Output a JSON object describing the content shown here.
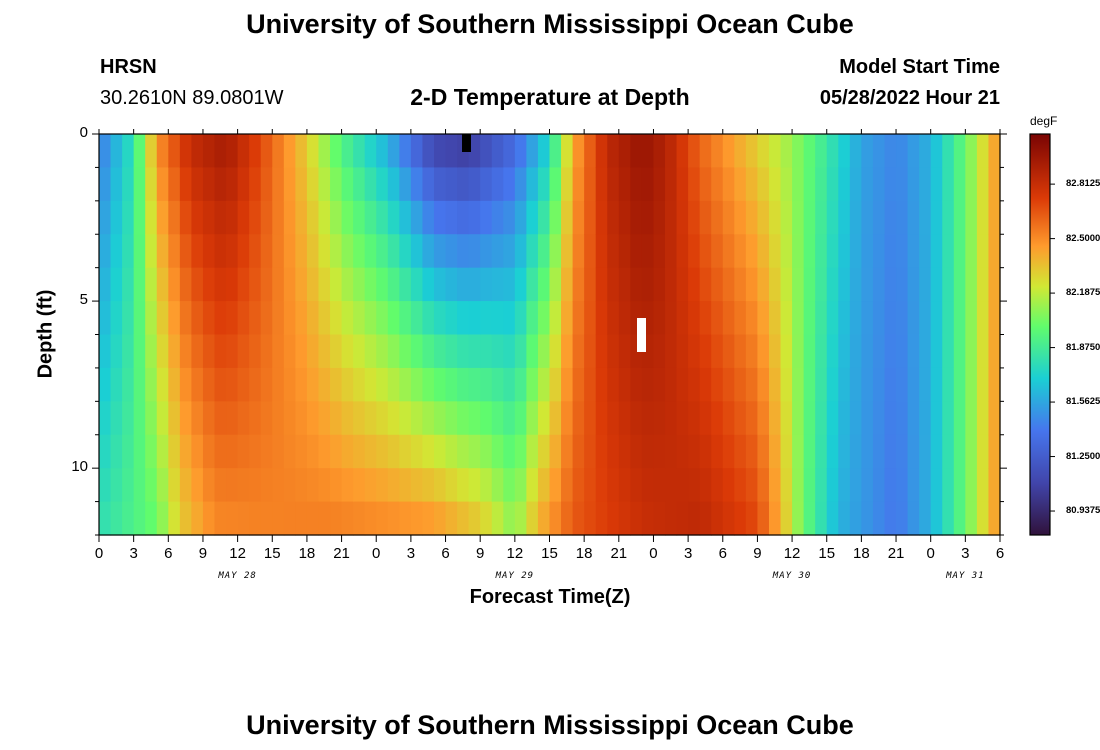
{
  "header": {
    "main_title": "University of Southern Mississippi Ocean Cube",
    "station": "HRSN",
    "coords": "30.2610N  89.0801W",
    "chart_title": "2-D Temperature at Depth",
    "model_start_label": "Model Start Time",
    "model_start_value": "05/28/2022 Hour 21",
    "footer_title": "University of Southern Mississippi Ocean Cube"
  },
  "chart_data": {
    "type": "heatmap",
    "title": "2-D Temperature at Depth",
    "xlabel": "Forecast Time(Z)",
    "ylabel": "Depth (ft)",
    "x_tick_labels": [
      "0",
      "3",
      "6",
      "9",
      "12",
      "15",
      "18",
      "21",
      "0",
      "3",
      "6",
      "9",
      "12",
      "15",
      "18",
      "21",
      "0",
      "3",
      "6",
      "9",
      "12",
      "15",
      "18",
      "21",
      "0",
      "3",
      "6"
    ],
    "x_range_hours": [
      0,
      78
    ],
    "day_labels": [
      {
        "label": "MAY 28",
        "hour": 12
      },
      {
        "label": "MAY 29",
        "hour": 36
      },
      {
        "label": "MAY 30",
        "hour": 60
      },
      {
        "label": "MAY 31",
        "hour": 75
      }
    ],
    "y_tick_labels": [
      "0",
      "5",
      "10"
    ],
    "y_range_ft": [
      0,
      12
    ],
    "y_inverted": true,
    "colorbar": {
      "unit": "degF",
      "tick_labels": [
        "82.8125",
        "82.5000",
        "82.1875",
        "81.8750",
        "81.5625",
        "81.2500",
        "80.9375"
      ],
      "tick_values": [
        82.8125,
        82.5,
        82.1875,
        81.875,
        81.5625,
        81.25,
        80.9375
      ],
      "range": [
        80.8,
        83.1
      ]
    },
    "description_note": "",
    "surface_profile": [
      {
        "hour": 0,
        "value": 81.4
      },
      {
        "hour": 3,
        "value": 81.8
      },
      {
        "hour": 5,
        "value": 82.5
      },
      {
        "hour": 8,
        "value": 82.85
      },
      {
        "hour": 11,
        "value": 82.95
      },
      {
        "hour": 14,
        "value": 82.7
      },
      {
        "hour": 18,
        "value": 82.3
      },
      {
        "hour": 21,
        "value": 81.9
      },
      {
        "hour": 25,
        "value": 81.55
      },
      {
        "hour": 29,
        "value": 81.05
      },
      {
        "hour": 32,
        "value": 81.0
      },
      {
        "hour": 36,
        "value": 81.3
      },
      {
        "hour": 39,
        "value": 81.7
      },
      {
        "hour": 41,
        "value": 82.4
      },
      {
        "hour": 44,
        "value": 82.85
      },
      {
        "hour": 47,
        "value": 83.0
      },
      {
        "hour": 49,
        "value": 82.9
      },
      {
        "hour": 52,
        "value": 82.6
      },
      {
        "hour": 56,
        "value": 82.35
      },
      {
        "hour": 60,
        "value": 82.1
      },
      {
        "hour": 63,
        "value": 81.85
      },
      {
        "hour": 66,
        "value": 81.55
      },
      {
        "hour": 69,
        "value": 81.45
      },
      {
        "hour": 72,
        "value": 81.6
      },
      {
        "hour": 75,
        "value": 82.0
      },
      {
        "hour": 78,
        "value": 82.5
      }
    ],
    "bottom_profile": [
      {
        "hour": 0,
        "value": 81.8
      },
      {
        "hour": 5,
        "value": 82.0
      },
      {
        "hour": 7,
        "value": 82.3
      },
      {
        "hour": 10,
        "value": 82.5
      },
      {
        "hour": 20,
        "value": 82.55
      },
      {
        "hour": 29,
        "value": 82.5
      },
      {
        "hour": 33,
        "value": 82.35
      },
      {
        "hour": 36,
        "value": 82.1
      },
      {
        "hour": 38,
        "value": 82.4
      },
      {
        "hour": 41,
        "value": 82.65
      },
      {
        "hour": 47,
        "value": 82.8
      },
      {
        "hour": 52,
        "value": 82.85
      },
      {
        "hour": 57,
        "value": 82.7
      },
      {
        "hour": 59,
        "value": 82.4
      },
      {
        "hour": 61,
        "value": 82.0
      },
      {
        "hour": 64,
        "value": 81.6
      },
      {
        "hour": 69,
        "value": 81.4
      },
      {
        "hour": 72,
        "value": 81.6
      },
      {
        "hour": 75,
        "value": 82.0
      },
      {
        "hour": 78,
        "value": 82.5
      }
    ]
  }
}
